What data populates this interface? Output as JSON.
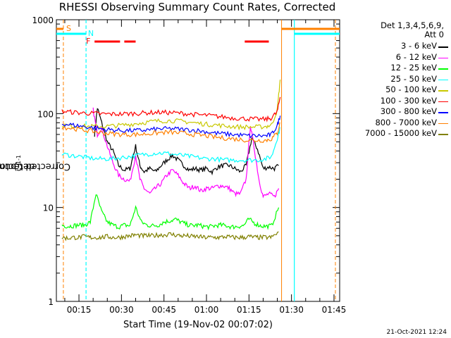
{
  "chart_data": {
    "type": "line",
    "title": "RHESSI Observing Summary Count Rates, Corrected",
    "xlabel": "Start Time (19-Nov-02 00:07:02)",
    "ylabel": "Corrected Count Rate (s",
    "ylabel_sup": "-1",
    "ylabel_tail": " detector",
    "ylabel_tail_sup": "-1",
    "ylabel_close": ")",
    "yscale": "log",
    "ylim": [
      1,
      1000
    ],
    "xlim_minutes": [
      7.0333,
      47
    ],
    "x_note": "x values in minutes after 01:00 offset — axis spans 00:07:02 to ~01:47",
    "x_range_min": [
      7.03,
      107
    ],
    "x_ticks": [
      {
        "t": 15,
        "label": "00:15"
      },
      {
        "t": 30,
        "label": "00:30"
      },
      {
        "t": 45,
        "label": "00:45"
      },
      {
        "t": 60,
        "label": "01:00"
      },
      {
        "t": 75,
        "label": "01:15"
      },
      {
        "t": 90,
        "label": "01:30"
      },
      {
        "t": 105,
        "label": "01:45"
      }
    ],
    "y_ticks": [
      {
        "v": 1,
        "label": "1"
      },
      {
        "v": 10,
        "label": "10"
      },
      {
        "v": 100,
        "label": "100"
      },
      {
        "v": 1000,
        "label": "1000"
      }
    ],
    "legend_header": [
      "Det 1,3,4,5,6,9,",
      "Att 0"
    ],
    "series": [
      {
        "name": "3 - 6 keV",
        "color": "#000000",
        "points": [
          [
            20.5,
            60
          ],
          [
            21.5,
            115
          ],
          [
            23,
            80
          ],
          [
            25,
            50
          ],
          [
            27,
            40
          ],
          [
            29,
            28
          ],
          [
            31,
            25
          ],
          [
            33,
            26
          ],
          [
            35,
            45
          ],
          [
            36.5,
            28
          ],
          [
            38,
            24
          ],
          [
            40,
            26
          ],
          [
            42,
            24
          ],
          [
            44,
            28
          ],
          [
            46,
            32
          ],
          [
            48,
            36
          ],
          [
            50,
            32
          ],
          [
            52,
            28
          ],
          [
            54,
            25
          ],
          [
            56,
            26
          ],
          [
            58,
            25
          ],
          [
            60,
            26
          ],
          [
            62,
            24
          ],
          [
            64,
            27
          ],
          [
            66,
            28
          ],
          [
            68,
            28
          ],
          [
            70,
            26
          ],
          [
            72,
            24
          ],
          [
            74,
            28
          ],
          [
            76,
            55
          ],
          [
            78,
            42
          ],
          [
            80,
            26
          ],
          [
            82,
            27
          ],
          [
            84,
            26
          ],
          [
            85.5,
            28
          ]
        ]
      },
      {
        "name": "6 - 12 keV",
        "color": "#ff00ff",
        "points": [
          [
            20,
            110
          ],
          [
            21.5,
            60
          ],
          [
            23,
            70
          ],
          [
            25,
            45
          ],
          [
            27,
            30
          ],
          [
            29,
            22
          ],
          [
            31,
            20
          ],
          [
            33,
            19
          ],
          [
            35,
            36
          ],
          [
            36.5,
            20
          ],
          [
            38,
            16
          ],
          [
            40,
            14
          ],
          [
            42,
            16
          ],
          [
            44,
            18
          ],
          [
            46,
            22
          ],
          [
            48,
            25
          ],
          [
            50,
            22
          ],
          [
            52,
            18
          ],
          [
            54,
            16
          ],
          [
            56,
            17
          ],
          [
            58,
            15
          ],
          [
            60,
            16
          ],
          [
            62,
            16
          ],
          [
            64,
            17
          ],
          [
            66,
            17
          ],
          [
            68,
            16
          ],
          [
            70,
            14
          ],
          [
            72,
            14
          ],
          [
            74,
            20
          ],
          [
            75.5,
            75
          ],
          [
            77,
            40
          ],
          [
            78.5,
            20
          ],
          [
            80,
            13
          ],
          [
            82,
            14
          ],
          [
            84,
            13
          ],
          [
            85.5,
            16
          ]
        ]
      },
      {
        "name": "12 - 25 keV",
        "color": "#00ff00",
        "points": [
          [
            9,
            6.5
          ],
          [
            11,
            6.3
          ],
          [
            13,
            6.4
          ],
          [
            15,
            6.5
          ],
          [
            17,
            6.5
          ],
          [
            19,
            7
          ],
          [
            21,
            14
          ],
          [
            23,
            9
          ],
          [
            25,
            7
          ],
          [
            27,
            6.5
          ],
          [
            29,
            6.2
          ],
          [
            31,
            6.5
          ],
          [
            33,
            6.4
          ],
          [
            35,
            10
          ],
          [
            37,
            7
          ],
          [
            39,
            6.5
          ],
          [
            41,
            6.4
          ],
          [
            43,
            6.5
          ],
          [
            45,
            7
          ],
          [
            47,
            7.2
          ],
          [
            49,
            7.5
          ],
          [
            51,
            7
          ],
          [
            53,
            6.6
          ],
          [
            55,
            6.4
          ],
          [
            57,
            6.5
          ],
          [
            59,
            6.3
          ],
          [
            61,
            6.2
          ],
          [
            63,
            6.4
          ],
          [
            65,
            6.5
          ],
          [
            67,
            6.4
          ],
          [
            69,
            6.2
          ],
          [
            71,
            6.3
          ],
          [
            73,
            6.4
          ],
          [
            75,
            7.5
          ],
          [
            77,
            6.8
          ],
          [
            79,
            6.4
          ],
          [
            81,
            6.3
          ],
          [
            83,
            6.4
          ],
          [
            85.5,
            10
          ]
        ]
      },
      {
        "name": "25 - 50 keV",
        "color": "#00ffff",
        "points": [
          [
            9,
            37
          ],
          [
            12,
            36
          ],
          [
            15,
            35
          ],
          [
            18,
            34
          ],
          [
            21,
            33
          ],
          [
            24,
            33
          ],
          [
            27,
            33
          ],
          [
            30,
            34
          ],
          [
            33,
            35
          ],
          [
            36,
            36
          ],
          [
            39,
            37
          ],
          [
            42,
            38
          ],
          [
            45,
            38
          ],
          [
            48,
            37
          ],
          [
            51,
            36
          ],
          [
            54,
            35
          ],
          [
            57,
            34
          ],
          [
            60,
            33
          ],
          [
            63,
            33
          ],
          [
            66,
            32
          ],
          [
            69,
            32
          ],
          [
            72,
            32
          ],
          [
            75,
            32
          ],
          [
            78,
            32
          ],
          [
            81,
            33
          ],
          [
            83,
            35
          ],
          [
            85,
            55
          ],
          [
            86,
            70
          ]
        ]
      },
      {
        "name": "50 - 100 keV",
        "color": "#c8c800",
        "points": [
          [
            9,
            76
          ],
          [
            12,
            74
          ],
          [
            15,
            73
          ],
          [
            18,
            73
          ],
          [
            21,
            73
          ],
          [
            24,
            73
          ],
          [
            27,
            74
          ],
          [
            30,
            75
          ],
          [
            33,
            77
          ],
          [
            36,
            79
          ],
          [
            39,
            81
          ],
          [
            42,
            83
          ],
          [
            45,
            84
          ],
          [
            48,
            84
          ],
          [
            51,
            83
          ],
          [
            54,
            81
          ],
          [
            57,
            79
          ],
          [
            60,
            77
          ],
          [
            63,
            76
          ],
          [
            66,
            74
          ],
          [
            69,
            73
          ],
          [
            72,
            72
          ],
          [
            75,
            72
          ],
          [
            78,
            72
          ],
          [
            81,
            73
          ],
          [
            83,
            76
          ],
          [
            85,
            110
          ],
          [
            86,
            230
          ]
        ]
      },
      {
        "name": "100 - 300 keV",
        "color": "#ff0000",
        "points": [
          [
            9,
            106
          ],
          [
            12,
            104
          ],
          [
            15,
            102
          ],
          [
            18,
            101
          ],
          [
            21,
            100
          ],
          [
            24,
            99
          ],
          [
            27,
            99
          ],
          [
            30,
            99
          ],
          [
            33,
            100
          ],
          [
            36,
            101
          ],
          [
            39,
            102
          ],
          [
            42,
            103
          ],
          [
            45,
            103
          ],
          [
            48,
            102
          ],
          [
            51,
            101
          ],
          [
            54,
            99
          ],
          [
            57,
            97
          ],
          [
            60,
            96
          ],
          [
            63,
            94
          ],
          [
            66,
            92
          ],
          [
            69,
            90
          ],
          [
            72,
            89
          ],
          [
            75,
            88
          ],
          [
            78,
            87
          ],
          [
            81,
            87
          ],
          [
            83,
            90
          ],
          [
            85,
            105
          ],
          [
            86,
            150
          ]
        ]
      },
      {
        "name": "300 - 800 keV",
        "color": "#0000ff",
        "points": [
          [
            9,
            78
          ],
          [
            12,
            76
          ],
          [
            15,
            74
          ],
          [
            18,
            72
          ],
          [
            21,
            70
          ],
          [
            24,
            68
          ],
          [
            27,
            67
          ],
          [
            30,
            66
          ],
          [
            33,
            66
          ],
          [
            36,
            66
          ],
          [
            39,
            67
          ],
          [
            42,
            68
          ],
          [
            45,
            69
          ],
          [
            48,
            69
          ],
          [
            51,
            68
          ],
          [
            54,
            67
          ],
          [
            57,
            66
          ],
          [
            60,
            64
          ],
          [
            63,
            62
          ],
          [
            66,
            61
          ],
          [
            69,
            60
          ],
          [
            72,
            59
          ],
          [
            75,
            58
          ],
          [
            78,
            58
          ],
          [
            81,
            58
          ],
          [
            83,
            60
          ],
          [
            85,
            75
          ],
          [
            86,
            95
          ]
        ]
      },
      {
        "name": "800 - 7000 keV",
        "color": "#ff8000",
        "points": [
          [
            9,
            72
          ],
          [
            12,
            70
          ],
          [
            15,
            68
          ],
          [
            18,
            66
          ],
          [
            21,
            64
          ],
          [
            24,
            62
          ],
          [
            27,
            61
          ],
          [
            30,
            60
          ],
          [
            33,
            60
          ],
          [
            36,
            60
          ],
          [
            39,
            61
          ],
          [
            42,
            62
          ],
          [
            45,
            63
          ],
          [
            48,
            63
          ],
          [
            51,
            62
          ],
          [
            54,
            61
          ],
          [
            57,
            59
          ],
          [
            60,
            58
          ],
          [
            63,
            56
          ],
          [
            66,
            55
          ],
          [
            69,
            54
          ],
          [
            72,
            53
          ],
          [
            75,
            52
          ],
          [
            78,
            52
          ],
          [
            81,
            52
          ],
          [
            83,
            54
          ],
          [
            85,
            62
          ],
          [
            86,
            80
          ]
        ]
      },
      {
        "name": "7000 - 15000 keV",
        "color": "#808000",
        "points": [
          [
            9,
            4.8
          ],
          [
            11,
            4.7
          ],
          [
            13,
            4.8
          ],
          [
            15,
            4.8
          ],
          [
            17,
            4.9
          ],
          [
            19,
            4.8
          ],
          [
            21,
            4.8
          ],
          [
            23,
            4.8
          ],
          [
            25,
            4.9
          ],
          [
            27,
            4.8
          ],
          [
            29,
            4.8
          ],
          [
            31,
            4.9
          ],
          [
            33,
            5
          ],
          [
            35,
            5.1
          ],
          [
            37,
            5
          ],
          [
            39,
            5
          ],
          [
            41,
            5
          ],
          [
            43,
            5.1
          ],
          [
            45,
            5.1
          ],
          [
            47,
            5.2
          ],
          [
            49,
            5.1
          ],
          [
            51,
            5
          ],
          [
            53,
            5
          ],
          [
            55,
            4.9
          ],
          [
            57,
            4.9
          ],
          [
            59,
            4.8
          ],
          [
            61,
            4.8
          ],
          [
            63,
            4.8
          ],
          [
            65,
            4.8
          ],
          [
            67,
            4.9
          ],
          [
            69,
            4.8
          ],
          [
            71,
            4.8
          ],
          [
            73,
            4.8
          ],
          [
            75,
            4.9
          ],
          [
            77,
            4.8
          ],
          [
            79,
            4.8
          ],
          [
            81,
            4.8
          ],
          [
            83,
            4.8
          ],
          [
            85.5,
            5.5
          ]
        ]
      }
    ],
    "flags": {
      "S_label": "S",
      "N_label": "N",
      "F_label": "F",
      "S_color": "#ff8000",
      "N_color": "#00ffff",
      "F_color": "#ff0000",
      "saa_intervals": [
        [
          7.03,
          9.5
        ],
        [
          86.5,
          107
        ]
      ],
      "night_intervals": [
        [
          7.03,
          17.5
        ],
        [
          91,
          107
        ]
      ],
      "flare_intervals": [
        [
          20.5,
          29.5
        ],
        [
          31,
          35
        ],
        [
          73.5,
          82
        ]
      ],
      "saa_lines": [
        9.5,
        86.5,
        105.5
      ],
      "night_lines": [
        17.5,
        91
      ]
    }
  },
  "timestamp": "21-Oct-2021 12:24"
}
